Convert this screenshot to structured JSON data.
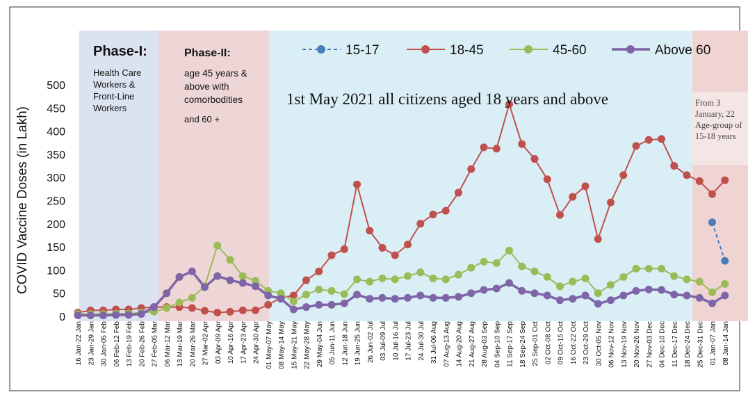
{
  "chart_data": {
    "type": "line",
    "y_label": "COVID Vaccine Doses (in Lakh)",
    "annotations": {
      "phase1_title": "Phase-I:",
      "phase1_text": "Health Care Workers & Front-Line Workers",
      "phase2_title": "Phase-II:",
      "phase2_text": "age 45 years & above with comorbodities",
      "phase2_text2": "and 60 +",
      "phase3_text": "1st May 2021 all citizens aged 18 years and above",
      "phase4_text": "From 3 January, 22 Age-group of 15-18 years"
    },
    "categories": [
      "16 Jan-22 Jan",
      "23 Jan-29 Jan",
      "30 Jan-05 Feb",
      "06 Feb-12 Feb",
      "13 Feb-19 Feb",
      "20 Feb-26 Feb",
      "27 Feb-05 Mar",
      "06 Mar-12 Mar",
      "13 Mar-19 Mar",
      "20 Mar-26 Mar",
      "27 Mar-02 Apr",
      "03 Apr-09 Apr",
      "10 Apr-16 Apr",
      "17 Apr-23 Apr",
      "24 Apr-30 Apr",
      "01 May-07 May",
      "08 May-14 May",
      "15 May-21 May",
      "22 May-28 May",
      "29 May-04 Jun",
      "05 Jun-11 Jun",
      "12 Jun-18 Jun",
      "19 Jun-25 Jun",
      "26 Jun-02 Jul",
      "03 Jul-09 Jul",
      "10 Jul-16 Jul",
      "17 Jul-23 Jul",
      "24 Jul-30 Jul",
      "31 Jul-06 Aug",
      "07 Aug-13 Aug",
      "14 Aug-20 Aug",
      "21 Aug-27 Aug",
      "28 Aug-03 Sep",
      "04 Sep-10 Sep",
      "11 Sep-17 Sep",
      "18 Sep-24 Sep",
      "25 Sep-01 Oct",
      "02 Oct-08 Oct",
      "09 Oct-15 Oct",
      "16 Oct-22 Oct",
      "23 Oct-29 Oct",
      "30 Oct-05 Nov",
      "06 Nov-12 Nov",
      "13 Nov-19 Nov",
      "20 Nov-26 Nov",
      "27 Nov-03 Dec",
      "04 Dec-10 Dec",
      "11 Dec-17 Dec",
      "18 Dec-24 Dec",
      "25 Dec-31 Dec",
      "01 Jan-07 Jan",
      "08 Jan-14 Jan"
    ],
    "series": [
      {
        "name": "15-17",
        "color": "#4a7ebb",
        "dashed": true,
        "values": [
          null,
          null,
          null,
          null,
          null,
          null,
          null,
          null,
          null,
          null,
          null,
          null,
          null,
          null,
          null,
          null,
          null,
          null,
          null,
          null,
          null,
          null,
          null,
          null,
          null,
          null,
          null,
          null,
          null,
          null,
          null,
          null,
          null,
          null,
          null,
          null,
          null,
          null,
          null,
          null,
          null,
          null,
          null,
          null,
          null,
          null,
          null,
          null,
          null,
          null,
          203,
          120
        ]
      },
      {
        "name": "18-45",
        "color": "#c0504d",
        "values": [
          8,
          13,
          13,
          15,
          15,
          18,
          20,
          20,
          20,
          18,
          12,
          8,
          10,
          13,
          13,
          25,
          40,
          45,
          78,
          97,
          132,
          145,
          285,
          185,
          148,
          132,
          155,
          200,
          220,
          228,
          267,
          318,
          365,
          362,
          458,
          372,
          340,
          296,
          219,
          258,
          281,
          167,
          246,
          305,
          368,
          381,
          383,
          325,
          305,
          292,
          264,
          294
        ]
      },
      {
        "name": "45-60",
        "color": "#9bbb59",
        "values": [
          5,
          5,
          5,
          6,
          6,
          8,
          10,
          18,
          30,
          40,
          65,
          153,
          122,
          87,
          77,
          55,
          50,
          32,
          47,
          58,
          55,
          48,
          80,
          75,
          82,
          80,
          87,
          95,
          82,
          80,
          90,
          105,
          118,
          115,
          142,
          108,
          97,
          85,
          65,
          75,
          82,
          50,
          68,
          85,
          103,
          103,
          103,
          87,
          80,
          75,
          52,
          70
        ]
      },
      {
        "name": "Above 60",
        "color": "#7e65a8",
        "thick": true,
        "values": [
          2,
          2,
          2,
          3,
          3,
          5,
          20,
          50,
          85,
          97,
          63,
          87,
          78,
          72,
          65,
          45,
          38,
          15,
          20,
          25,
          25,
          28,
          47,
          38,
          40,
          38,
          40,
          45,
          40,
          40,
          42,
          50,
          57,
          60,
          72,
          55,
          50,
          45,
          35,
          38,
          45,
          27,
          35,
          45,
          55,
          58,
          57,
          47,
          45,
          40,
          28,
          45
        ]
      }
    ],
    "ylim": [
      0,
      500
    ],
    "yticks": [
      0,
      50,
      100,
      150,
      200,
      250,
      300,
      350,
      400,
      450,
      500
    ]
  }
}
